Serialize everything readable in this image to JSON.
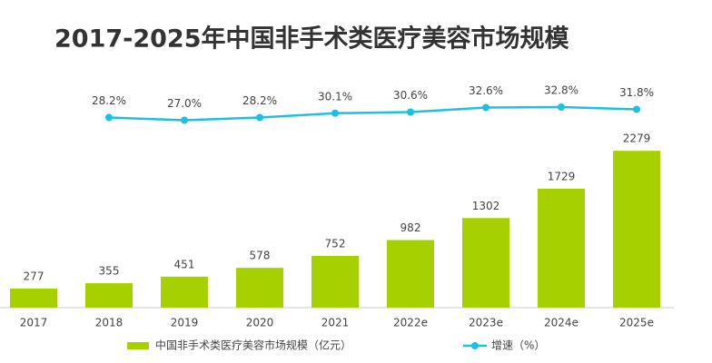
{
  "chart_data": {
    "type": "bar_line",
    "title": "2017-2025年中国非手术类医疗美容市场规模",
    "categories": [
      "2017",
      "2018",
      "2019",
      "2020",
      "2021",
      "2022e",
      "2023e",
      "2024e",
      "2025e"
    ],
    "series": [
      {
        "name": "中国非手术类医疗美容市场规模（亿元）",
        "type": "bar",
        "color": "#a6d000",
        "values": [
          277,
          355,
          451,
          578,
          752,
          982,
          1302,
          1729,
          2279
        ]
      },
      {
        "name": "增速（%）",
        "type": "line",
        "axis": "y2",
        "color": "#1ec0e0",
        "values": [
          null,
          28.2,
          27.0,
          28.2,
          30.1,
          30.6,
          32.6,
          32.8,
          31.8
        ],
        "value_labels": [
          null,
          "28.2%",
          "27.0%",
          "28.2%",
          "30.1%",
          "30.6%",
          "32.6%",
          "32.8%",
          "31.8%"
        ]
      }
    ],
    "ylim": [
      0,
      2400
    ],
    "y2lim": [
      20,
      40
    ]
  }
}
